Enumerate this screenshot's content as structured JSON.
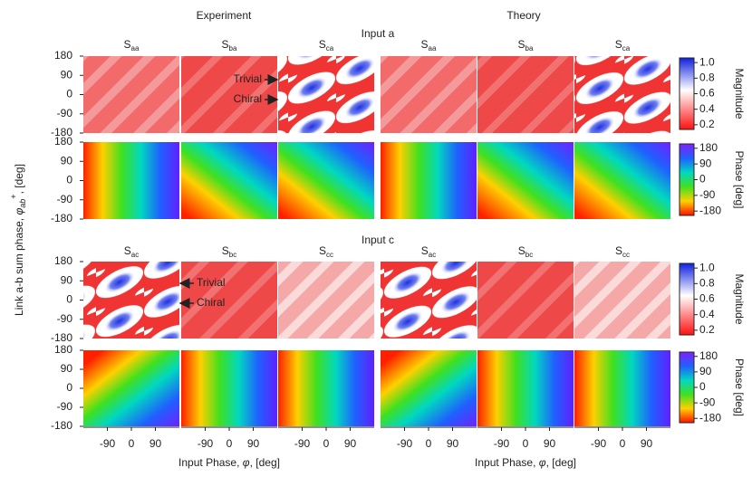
{
  "columns": [
    "Experiment",
    "Theory"
  ],
  "sections": [
    {
      "title": "Input a",
      "panels": [
        {
          "symbol": "S",
          "sub": "aa"
        },
        {
          "symbol": "S",
          "sub": "ba"
        },
        {
          "symbol": "S",
          "sub": "ca"
        }
      ],
      "annotations": [
        "Trivial",
        "Chiral"
      ]
    },
    {
      "title": "Input c",
      "panels": [
        {
          "symbol": "S",
          "sub": "ac"
        },
        {
          "symbol": "S",
          "sub": "bc"
        },
        {
          "symbol": "S",
          "sub": "cc"
        }
      ],
      "annotations": [
        "Trivial",
        "Chiral"
      ]
    }
  ],
  "y_axis": {
    "label": {
      "text": "Link a-b sum phase, ",
      "symbol": "φ",
      "sub": "ab",
      "sup": "+",
      "unit": ", [deg]"
    },
    "lim": [
      -180,
      180
    ],
    "ticks": [
      180,
      90,
      0,
      -90,
      -180
    ]
  },
  "x_axis": {
    "label": {
      "text": "Input Phase, ",
      "symbol": "φ",
      "unit": ", [deg]"
    },
    "lim": [
      -180,
      180
    ],
    "ticks": [
      -90,
      0,
      90
    ]
  },
  "colorbars": {
    "magnitude": {
      "label": "Magnitude",
      "lim": [
        0.14,
        1.06
      ],
      "ticks": [
        {
          "value": 1.0,
          "label": "1.0"
        },
        {
          "value": 0.8,
          "label": "0.8"
        },
        {
          "value": 0.6,
          "label": "0.6"
        },
        {
          "value": 0.4,
          "label": "0.4"
        },
        {
          "value": 0.2,
          "label": "0.2"
        }
      ]
    },
    "phase": {
      "label": "Phase [deg]",
      "lim": [
        -205,
        205
      ],
      "ticks": [
        180,
        90,
        0,
        -90,
        -180
      ]
    }
  }
}
